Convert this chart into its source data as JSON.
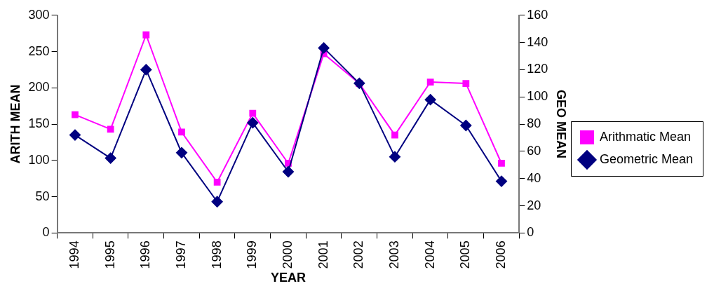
{
  "chart_data": {
    "type": "line",
    "xlabel": "YEAR",
    "ylabel": "ARITH MEAN",
    "y2label": "GEO MEAN",
    "categories": [
      "1994",
      "1995",
      "1996",
      "1997",
      "1998",
      "1999",
      "2000",
      "2001",
      "2002",
      "2003",
      "2004",
      "2005",
      "2006"
    ],
    "series": [
      {
        "name": "Arithmatic Mean",
        "color": "#ff00ff",
        "marker": "square",
        "values": [
          163,
          143,
          273,
          139,
          70,
          165,
          96,
          247,
          206,
          135,
          208,
          206,
          96
        ]
      },
      {
        "name": "Geometric Mean",
        "color": "#000080",
        "marker": "diamond",
        "axis": "y2",
        "values": [
          72,
          55,
          120,
          59,
          23,
          81,
          45,
          136,
          110,
          56,
          98,
          79,
          38
        ]
      }
    ],
    "ylim": [
      0,
      300
    ],
    "yticks": [
      0,
      50,
      100,
      150,
      200,
      250,
      300
    ],
    "y2lim": [
      0,
      160
    ],
    "y2ticks": [
      0,
      20,
      40,
      60,
      80,
      100,
      120,
      140,
      160
    ],
    "grid": false,
    "legend": "right"
  }
}
